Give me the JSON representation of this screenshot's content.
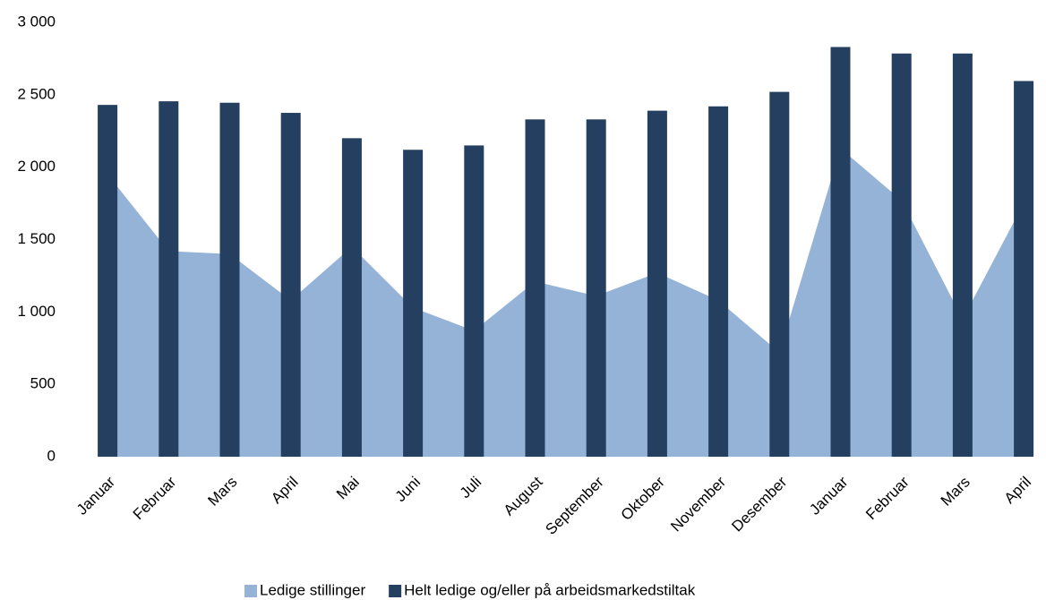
{
  "chart_data": {
    "type": "bar-area",
    "categories": [
      "Januar",
      "Februar",
      "Mars",
      "April",
      "Mai",
      "Juni",
      "Juli",
      "August",
      "September",
      "Oktober",
      "November",
      "Desember",
      "Januar",
      "Februar",
      "Mars",
      "April"
    ],
    "series": [
      {
        "name": "Ledige stillinger",
        "color": "#95b3d7",
        "kind": "area",
        "values": [
          1950,
          1420,
          1400,
          1080,
          1450,
          1030,
          870,
          1210,
          1110,
          1270,
          1080,
          720,
          2130,
          1770,
          950,
          1750
        ]
      },
      {
        "name": "Helt ledige og/eller på arbeidsmarkedstiltak",
        "color": "#243f60",
        "kind": "bar",
        "values": [
          2430,
          2455,
          2445,
          2375,
          2200,
          2120,
          2150,
          2330,
          2330,
          2390,
          2420,
          2520,
          2830,
          2785,
          2785,
          2595
        ]
      }
    ],
    "ylim": [
      0,
      3000
    ],
    "yticks": [
      0,
      500,
      {
        "value": 1000,
        "label": "1 000"
      },
      {
        "value": 1500,
        "label": "1 500"
      },
      {
        "value": 2000,
        "label": "2 000"
      },
      {
        "value": 2500,
        "label": "2 500"
      },
      {
        "value": 3000,
        "label": "3 000"
      }
    ],
    "legend": "bottom"
  }
}
